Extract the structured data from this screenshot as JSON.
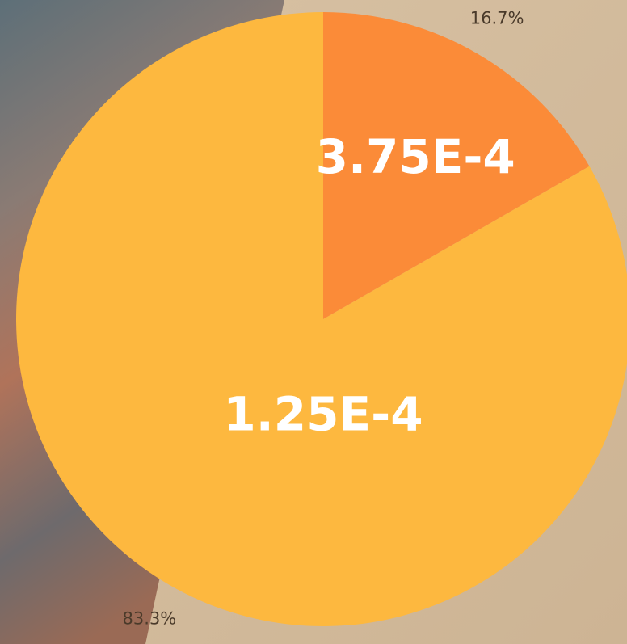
{
  "chart_data": {
    "type": "pie",
    "categories": [
      "3.75E-4",
      "1.25E-4"
    ],
    "values": [
      16.7,
      83.3
    ],
    "value_labels": [
      "16.7%",
      "83.3%"
    ],
    "colors": [
      "#fb8b38",
      "#fdb83f"
    ]
  }
}
